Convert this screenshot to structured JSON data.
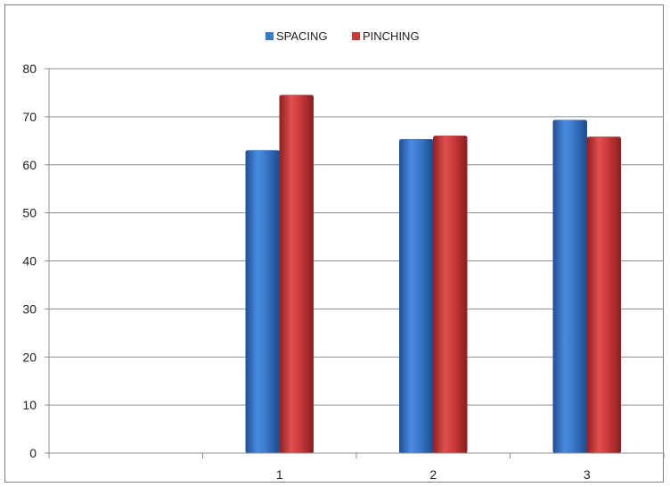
{
  "chart_data": {
    "type": "bar",
    "title": "",
    "xlabel": "",
    "ylabel": "",
    "categories": [
      "",
      "1",
      "2",
      "3"
    ],
    "series": [
      {
        "name": "SPACING",
        "color": "#3a78c8",
        "values": [
          null,
          63,
          65.3,
          69.3
        ]
      },
      {
        "name": "PINCHING",
        "color": "#cc3b3b",
        "values": [
          null,
          74.5,
          66,
          65.8
        ]
      }
    ],
    "ylim": [
      0,
      80
    ],
    "yticks": [
      0,
      10,
      20,
      30,
      40,
      50,
      60,
      70,
      80
    ],
    "grid": true,
    "legend_position": "top-center"
  }
}
